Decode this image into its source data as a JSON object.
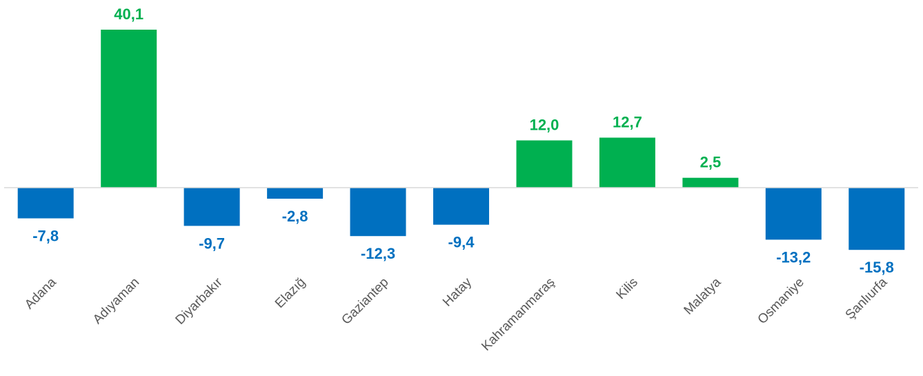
{
  "chart_data": {
    "type": "bar",
    "categories": [
      "Adana",
      "Adıyaman",
      "Diyarbakır",
      "Elazığ",
      "Gaziantep",
      "Hatay",
      "Kahramanmaraş",
      "Kilis",
      "Malatya",
      "Osmaniye",
      "Şanlıurfa"
    ],
    "values": [
      -7.8,
      40.1,
      -9.7,
      -2.8,
      -12.3,
      -9.4,
      12.0,
      12.7,
      2.5,
      -13.2,
      -15.8
    ],
    "value_labels": [
      "-7,8",
      "40,1",
      "-9,7",
      "-2,8",
      "-12,3",
      "-9,4",
      "12,0",
      "12,7",
      "2,5",
      "-13,2",
      "-15,8"
    ],
    "title": "",
    "xlabel": "",
    "ylabel": "",
    "ylim": [
      -20,
      45
    ],
    "grid": false,
    "legend": "none",
    "colors": {
      "positive": "#00b050",
      "negative": "#0070c0",
      "axis": "#d9d9d9",
      "category_text": "#595959"
    }
  }
}
